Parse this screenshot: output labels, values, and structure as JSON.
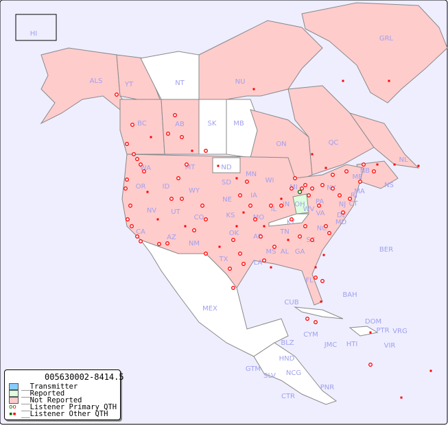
{
  "legend": {
    "id": "005630002-8414.5",
    "items": [
      {
        "label": "__Transmitter",
        "color": "#88ccff"
      },
      {
        "label": "__Reported",
        "color": "#ddffdd"
      },
      {
        "label": "__Not Reported",
        "color": "#ffcccc"
      },
      {
        "label": "__Listener Primary QTH",
        "marker": "circle"
      },
      {
        "label": "__Listener Other QTH",
        "marker": "square"
      }
    ]
  },
  "colors": {
    "ocean": "#eeeeff",
    "not_reported": "#ffcccc",
    "reported": "#ddffdd",
    "no_data": "#ffffff",
    "label": "#a0a0ee",
    "marker": "#ff0000"
  },
  "regions": {
    "not_reported": [
      "ALS",
      "YT",
      "NU",
      "GRL",
      "BC",
      "AB",
      "ON",
      "QC",
      "NL",
      "NB",
      "NS",
      "WA",
      "OR",
      "ID",
      "MT",
      "WY",
      "SD",
      "NE",
      "KS",
      "OK",
      "TX",
      "NM",
      "AZ",
      "UT",
      "NV",
      "CA",
      "CO",
      "MN",
      "IA",
      "MO",
      "AR",
      "LA",
      "MS",
      "AL",
      "GA",
      "FL",
      "SC",
      "NC",
      "TN",
      "VA",
      "WV",
      "IN",
      "IL",
      "WI",
      "MI",
      "PA",
      "NY",
      "VT",
      "NH",
      "ME",
      "MA",
      "CT",
      "RI",
      "NJ",
      "DE",
      "MD",
      "HI"
    ],
    "reported": [
      "OH"
    ],
    "no_data": [
      "NT",
      "SK",
      "MB",
      "ND",
      "KY",
      "MEX",
      "CUB",
      "BAH",
      "BER",
      "CYM",
      "JMC",
      "HTI",
      "DOM",
      "PTR",
      "VRG",
      "VIR",
      "BLZ",
      "GTM",
      "HND",
      "SLV",
      "NCG",
      "CTR",
      "PNR"
    ]
  },
  "labels": [
    "HI",
    "ALS",
    "YT",
    "NT",
    "NU",
    "GRL",
    "BC",
    "AB",
    "SK",
    "MB",
    "ON",
    "QC",
    "NL",
    "NB",
    "NS",
    "WA",
    "OR",
    "ID",
    "MT",
    "WY",
    "ND",
    "SD",
    "NE",
    "KS",
    "OK",
    "TX",
    "NM",
    "AZ",
    "UT",
    "NV",
    "CA",
    "CO",
    "MN",
    "IA",
    "MO",
    "AR",
    "LA",
    "MS",
    "AL",
    "GA",
    "FL",
    "SC",
    "NC",
    "TN",
    "KY",
    "VA",
    "WV",
    "OH",
    "IN",
    "IL",
    "WI",
    "MI",
    "PA",
    "NY",
    "ME",
    "MA",
    "CT",
    "RI",
    "NJ",
    "DE",
    "MD",
    "BER",
    "BAH",
    "CUB",
    "MEX",
    "CYM",
    "JMC",
    "HTI",
    "DOM",
    "PTR",
    "VRG",
    "VIR",
    "BLZ",
    "GTM",
    "HND",
    "SLV",
    "NCG",
    "CTR",
    "PNR"
  ]
}
